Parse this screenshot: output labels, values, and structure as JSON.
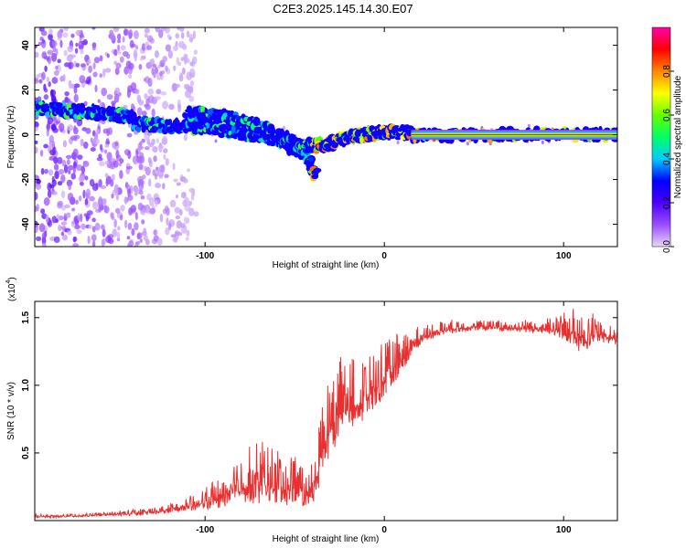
{
  "title": "C2E3.2025.145.14.30.E07",
  "chart_data": [
    {
      "type": "heatmap",
      "xlabel": "Height of straight line (km)",
      "ylabel": "Frequency (Hz)",
      "xlim": [
        -195,
        130
      ],
      "ylim": [
        -50,
        48
      ],
      "xticks": [
        -100,
        0,
        100
      ],
      "xtick_labels": [
        "-100",
        "0",
        "100"
      ],
      "yticks": [
        -40,
        -20,
        0,
        20,
        40
      ],
      "ytick_labels": [
        "-40",
        "-20",
        "0",
        "20",
        "40"
      ],
      "colorbar": {
        "label": "Normalized spectral amplitude",
        "range": [
          0,
          1
        ],
        "ticks": [
          0.0,
          0.2,
          0.4,
          0.6,
          0.8
        ],
        "tick_labels": [
          "0.0",
          "0.2",
          "0.4",
          "0.6",
          "0.8"
        ],
        "colormap": [
          "#e6d8f5",
          "#9b4dff",
          "#4b00ff",
          "#0000ff",
          "#00ccff",
          "#00ff66",
          "#66ff00",
          "#ffff00",
          "#ff8800",
          "#ff0000",
          "#ff00aa"
        ]
      },
      "tracks": [
        {
          "x": [
            -195,
            -180,
            -165,
            -150,
            -140
          ],
          "y": [
            12,
            11,
            10,
            9,
            8
          ]
        },
        {
          "x": [
            -140,
            -120,
            -100,
            -80,
            -60,
            -45,
            -38
          ],
          "y": [
            5,
            4,
            3,
            1,
            -2,
            -8,
            -18
          ]
        },
        {
          "x": [
            -110,
            -90,
            -70,
            -55,
            -45,
            -40
          ],
          "y": [
            10,
            8,
            4,
            -2,
            -6,
            -4
          ]
        },
        {
          "x": [
            -40,
            -30,
            -20,
            -10,
            0,
            15
          ],
          "y": [
            -5,
            -4,
            -1,
            0,
            1,
            1
          ]
        },
        {
          "x": [
            15,
            40,
            70,
            100,
            130
          ],
          "y": [
            0,
            0,
            0,
            0,
            0
          ]
        }
      ]
    },
    {
      "type": "line",
      "xlabel": "Height of straight line (km)",
      "ylabel": "SNR (10 * v/v)",
      "scale_label": "(x10",
      "scale_exp": "4",
      "xlim": [
        -195,
        130
      ],
      "ylim": [
        0,
        1.62
      ],
      "xticks": [
        -100,
        0,
        100
      ],
      "xtick_labels": [
        "-100",
        "0",
        "100"
      ],
      "yticks": [
        0.5,
        1.0,
        1.5
      ],
      "ytick_labels": [
        "0.5",
        "1.0",
        "1.5"
      ],
      "color": "#e83030",
      "series": [
        {
          "x": [
            -195,
            -180,
            -160,
            -140,
            -130,
            -120,
            -110,
            -100,
            -95,
            -90,
            -85,
            -80,
            -75,
            -70,
            -65,
            -60,
            -55,
            -50,
            -45,
            -40,
            -35,
            -30,
            -25,
            -20,
            -15,
            -10,
            -5,
            0,
            5,
            10,
            15,
            20,
            25,
            30,
            40,
            50,
            60,
            70,
            80,
            90,
            95,
            100,
            105,
            110,
            115,
            120,
            130
          ],
          "y": [
            0.03,
            0.03,
            0.04,
            0.05,
            0.06,
            0.08,
            0.1,
            0.13,
            0.15,
            0.17,
            0.2,
            0.24,
            0.26,
            0.27,
            0.25,
            0.24,
            0.24,
            0.22,
            0.21,
            0.2,
            0.48,
            0.7,
            0.78,
            0.82,
            0.85,
            0.9,
            0.97,
            1.03,
            1.12,
            1.2,
            1.28,
            1.33,
            1.37,
            1.4,
            1.42,
            1.43,
            1.43,
            1.42,
            1.42,
            1.41,
            1.4,
            1.4,
            1.38,
            1.36,
            1.38,
            1.37,
            1.34
          ],
          "noise": [
            0.01,
            0.01,
            0.01,
            0.02,
            0.02,
            0.03,
            0.04,
            0.06,
            0.08,
            0.1,
            0.13,
            0.15,
            0.17,
            0.18,
            0.18,
            0.17,
            0.16,
            0.14,
            0.13,
            0.12,
            0.22,
            0.25,
            0.24,
            0.22,
            0.2,
            0.18,
            0.17,
            0.16,
            0.14,
            0.12,
            0.08,
            0.06,
            0.05,
            0.04,
            0.04,
            0.03,
            0.03,
            0.03,
            0.04,
            0.05,
            0.06,
            0.08,
            0.1,
            0.16,
            0.12,
            0.06,
            0.05
          ]
        }
      ]
    }
  ]
}
